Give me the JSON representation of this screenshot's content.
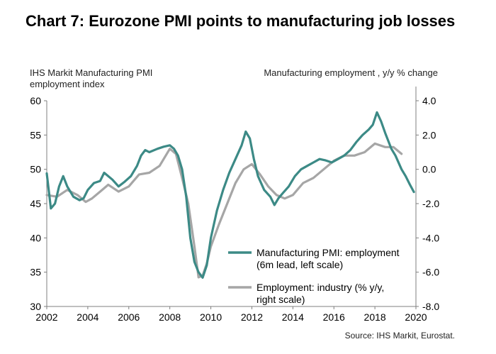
{
  "title": "Chart 7: Eurozone PMI points to manufacturing job losses",
  "source": "Source: IHS Markit, Eurostat.",
  "chart_data": {
    "type": "line",
    "left_axis": {
      "label": "IHS Markit Manufacturing PMI employment  index",
      "ylim": [
        30,
        60
      ],
      "ticks": [
        30,
        35,
        40,
        45,
        50,
        55,
        60
      ]
    },
    "right_axis": {
      "label": "Manufacturing employment  , y/y % change",
      "ylim": [
        -8,
        4
      ],
      "ticks": [
        "-8.0",
        "-6.0",
        "-4.0",
        "-2.0",
        "0.0",
        "2.0",
        "4.0"
      ],
      "tick_values": [
        -8,
        -6,
        -4,
        -2,
        0,
        2,
        4
      ]
    },
    "x_axis": {
      "xlim": [
        2002,
        2020
      ],
      "ticks": [
        "2002",
        "2004",
        "2006",
        "2008",
        "2010",
        "2012",
        "2014",
        "2016",
        "2018",
        "2020"
      ],
      "tick_values": [
        2002,
        2004,
        2006,
        2008,
        2010,
        2012,
        2014,
        2016,
        2018,
        2020
      ]
    },
    "grid": false,
    "legend": {
      "placement": "bottom-center"
    },
    "series": [
      {
        "name": "Manufacturing PMI: employment (6m lead, left scale)",
        "legend_lines": [
          "Manufacturing PMI: employment",
          "(6m lead, left scale)"
        ],
        "axis": "left",
        "color": "#3c8a86",
        "x": [
          2002.0,
          2002.2,
          2002.4,
          2002.6,
          2002.8,
          2003.0,
          2003.3,
          2003.6,
          2003.8,
          2004.0,
          2004.3,
          2004.6,
          2004.8,
          2005.2,
          2005.5,
          2005.8,
          2006.1,
          2006.4,
          2006.6,
          2006.8,
          2007.0,
          2007.4,
          2007.7,
          2008.0,
          2008.2,
          2008.4,
          2008.6,
          2008.8,
          2009.0,
          2009.2,
          2009.4,
          2009.6,
          2009.8,
          2010.0,
          2010.3,
          2010.6,
          2010.9,
          2011.2,
          2011.5,
          2011.7,
          2011.9,
          2012.1,
          2012.3,
          2012.6,
          2012.9,
          2013.1,
          2013.3,
          2013.5,
          2013.8,
          2014.1,
          2014.4,
          2014.7,
          2015.0,
          2015.3,
          2015.6,
          2015.9,
          2016.2,
          2016.5,
          2016.8,
          2017.1,
          2017.4,
          2017.7,
          2017.9,
          2018.1,
          2018.3,
          2018.5,
          2018.8,
          2019.0,
          2019.3,
          2019.5,
          2019.7,
          2019.9
        ],
        "values": [
          49.4,
          44.3,
          45.0,
          47.5,
          49.0,
          47.5,
          46.0,
          45.5,
          45.8,
          47.0,
          48.0,
          48.3,
          49.5,
          48.5,
          47.5,
          48.2,
          49.0,
          50.5,
          52.0,
          52.8,
          52.5,
          53.0,
          53.3,
          53.5,
          53.0,
          52.0,
          50.0,
          46.0,
          40.0,
          36.5,
          35.0,
          34.2,
          36.0,
          40.0,
          44.0,
          47.0,
          49.5,
          51.5,
          53.5,
          55.5,
          54.5,
          51.5,
          49.0,
          47.0,
          46.0,
          44.8,
          45.8,
          46.5,
          47.5,
          49.0,
          50.0,
          50.5,
          51.0,
          51.5,
          51.3,
          51.0,
          51.5,
          52.0,
          52.8,
          54.0,
          55.0,
          55.8,
          56.5,
          58.3,
          57.0,
          55.3,
          53.0,
          52.0,
          50.0,
          49.0,
          47.8,
          46.7
        ]
      },
      {
        "name": "Employment: industry (% y/y, right scale)",
        "legend_lines": [
          "Employment: industry (% y/y,",
          "right scale)"
        ],
        "axis": "right",
        "color": "#a6a6a6",
        "x": [
          2002.0,
          2002.5,
          2003.0,
          2003.5,
          2003.9,
          2004.2,
          2004.6,
          2005.0,
          2005.5,
          2006.0,
          2006.5,
          2007.0,
          2007.5,
          2008.0,
          2008.3,
          2008.6,
          2008.9,
          2009.2,
          2009.4,
          2009.6,
          2009.8,
          2010.0,
          2010.4,
          2010.8,
          2011.2,
          2011.6,
          2012.0,
          2012.4,
          2012.8,
          2013.2,
          2013.6,
          2014.0,
          2014.5,
          2015.0,
          2015.5,
          2016.0,
          2016.5,
          2017.0,
          2017.5,
          2018.0,
          2018.5,
          2018.9,
          2019.3
        ],
        "values": [
          -1.5,
          -1.6,
          -1.2,
          -1.5,
          -1.9,
          -1.7,
          -1.3,
          -0.9,
          -1.3,
          -1.0,
          -0.3,
          -0.2,
          0.2,
          1.2,
          0.9,
          -0.5,
          -2.0,
          -4.5,
          -6.3,
          -6.2,
          -5.5,
          -4.5,
          -3.2,
          -2.0,
          -0.8,
          0.0,
          0.3,
          -0.3,
          -1.0,
          -1.5,
          -1.7,
          -1.5,
          -0.8,
          -0.5,
          0.0,
          0.5,
          0.8,
          0.8,
          1.0,
          1.5,
          1.3,
          1.3,
          0.9
        ]
      }
    ]
  }
}
